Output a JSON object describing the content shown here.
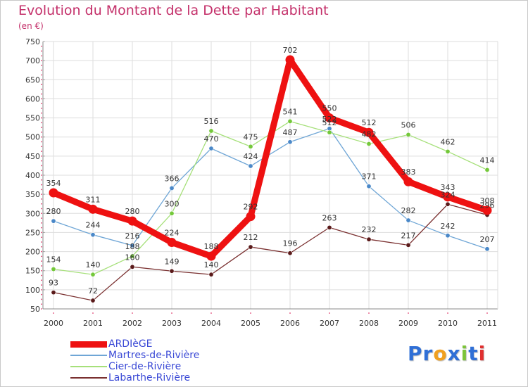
{
  "header": {
    "title": "Evolution du Montant de la Dette par Habitant",
    "subtitle": "(en €)"
  },
  "logo": {
    "text": "Proxiti",
    "letters": [
      {
        "ch": "P",
        "color": "#2f6fd6"
      },
      {
        "ch": "r",
        "color": "#2f6fd6"
      },
      {
        "ch": "o",
        "color": "#f0a020"
      },
      {
        "ch": "x",
        "color": "#2f6fd6"
      },
      {
        "ch": "i",
        "color": "#7cc43a"
      },
      {
        "ch": "t",
        "color": "#2f6fd6"
      },
      {
        "ch": "i",
        "color": "#e03030"
      }
    ]
  },
  "chart_data": {
    "type": "line",
    "title": "Evolution du Montant de la Dette par Habitant",
    "ylabel": "(en €)",
    "xlabel": "",
    "categories": [
      "2000",
      "2001",
      "2002",
      "2003",
      "2004",
      "2005",
      "2006",
      "2007",
      "2008",
      "2009",
      "2010",
      "2011"
    ],
    "ylim": [
      50,
      750
    ],
    "yticks": [
      50,
      100,
      150,
      200,
      250,
      300,
      350,
      400,
      450,
      500,
      550,
      600,
      650,
      700,
      750
    ],
    "grid": true,
    "series": [
      {
        "name": "ARDIèGE",
        "color": "#ee1111",
        "marker": "#ee1111",
        "emphasis": true,
        "values": [
          354,
          311,
          280,
          224,
          188,
          292,
          702,
          550,
          512,
          383,
          343,
          308
        ]
      },
      {
        "name": "Martres-de-Rivière",
        "color": "#6fa6d6",
        "marker": "#4a88c8",
        "emphasis": false,
        "values": [
          280,
          244,
          216,
          366,
          470,
          424,
          487,
          522,
          371,
          282,
          242,
          207
        ]
      },
      {
        "name": "Cier-de-Rivière",
        "color": "#a6e07a",
        "marker": "#74c83a",
        "emphasis": false,
        "values": [
          154,
          140,
          188,
          300,
          516,
          475,
          541,
          512,
          482,
          506,
          462,
          414
        ]
      },
      {
        "name": "Labarthe-Rivière",
        "color": "#7a3030",
        "marker": "#5a1a1a",
        "emphasis": false,
        "values": [
          93,
          72,
          160,
          149,
          140,
          212,
          196,
          263,
          232,
          217,
          324,
          296
        ]
      }
    ],
    "data_labels": [
      {
        "series": 0,
        "labels": [
          "354",
          "311",
          "280",
          "224",
          "188",
          "292",
          "702",
          "550",
          "512",
          "383",
          "343",
          "308"
        ]
      },
      {
        "series": 1,
        "labels": [
          "280",
          "244",
          "216",
          "366",
          "470",
          "424",
          "487",
          "522",
          "371",
          "282",
          "242",
          "207"
        ]
      },
      {
        "series": 2,
        "labels": [
          "154",
          "140",
          "188",
          "300",
          "516",
          "475",
          "541",
          "512",
          "482",
          "506",
          "462",
          "414"
        ]
      },
      {
        "series": 3,
        "labels": [
          "93",
          "72",
          "160",
          "149",
          "140",
          "212",
          "196",
          "263",
          "232",
          "217",
          "324",
          "296"
        ]
      }
    ]
  }
}
